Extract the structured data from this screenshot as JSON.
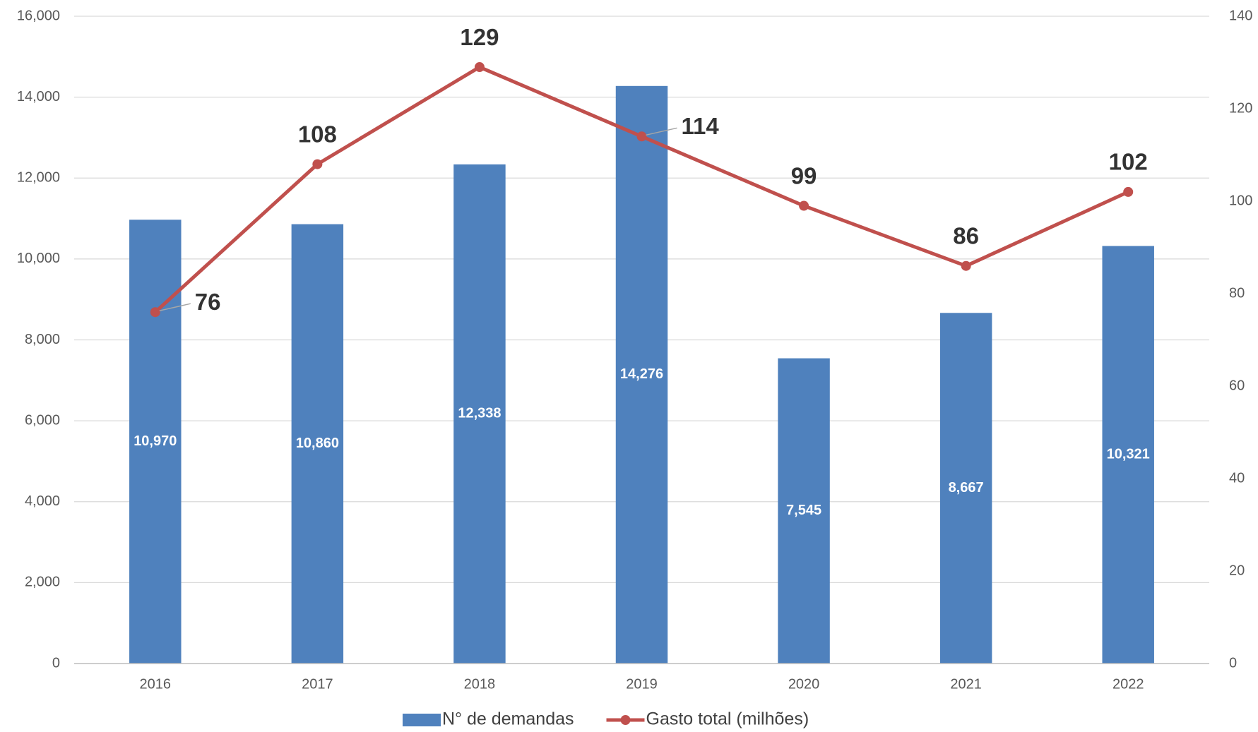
{
  "chart_data": {
    "type": "bar",
    "categories": [
      "2016",
      "2017",
      "2018",
      "2019",
      "2020",
      "2021",
      "2022"
    ],
    "series": [
      {
        "name": "N° de demandas",
        "type": "bar",
        "color": "#4f81bd",
        "values": [
          10970,
          10860,
          12338,
          14276,
          7545,
          8667,
          10321
        ],
        "value_labels": [
          "10,970",
          "10,860",
          "12,338",
          "14,276",
          "7,545",
          "8,667",
          "10,321"
        ]
      },
      {
        "name": "Gasto total (milhões)",
        "type": "line",
        "axis": "y2",
        "color": "#c0504d",
        "values": [
          76,
          108,
          129,
          114,
          99,
          86,
          102
        ]
      }
    ],
    "ylim": [
      0,
      16000
    ],
    "yticks": [
      {
        "value": 0,
        "label": "0"
      },
      {
        "value": 2000,
        "label": "2,000"
      },
      {
        "value": 4000,
        "label": "4,000"
      },
      {
        "value": 6000,
        "label": "6,000"
      },
      {
        "value": 8000,
        "label": "8,000"
      },
      {
        "value": 10000,
        "label": "10,000"
      },
      {
        "value": 12000,
        "label": "12,000"
      },
      {
        "value": 14000,
        "label": "14,000"
      },
      {
        "value": 16000,
        "label": "16,000"
      }
    ],
    "y2lim": [
      0,
      140
    ],
    "y2ticks": [
      0,
      20,
      40,
      60,
      80,
      100,
      120,
      140
    ],
    "grid": true
  }
}
